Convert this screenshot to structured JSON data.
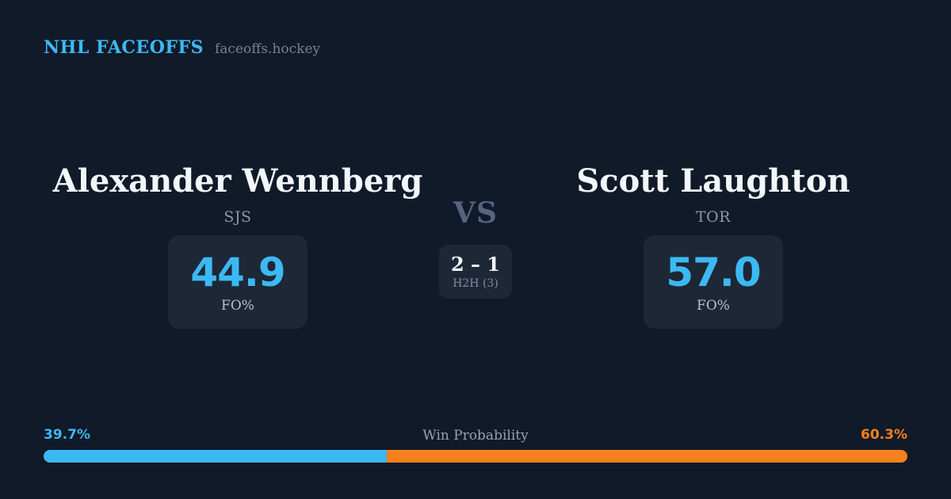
{
  "header": {
    "brand": "NHL FACEOFFS",
    "site": "faceoffs.hockey"
  },
  "players": {
    "left": {
      "name": "Alexander Wennberg",
      "team": "SJS",
      "fo_pct": "44.9",
      "stat_label": "FO%"
    },
    "right": {
      "name": "Scott Laughton",
      "team": "TOR",
      "fo_pct": "57.0",
      "stat_label": "FO%"
    }
  },
  "center": {
    "vs_label": "VS",
    "h2h_score": "2 – 1",
    "h2h_label": "H2H (3)"
  },
  "win_probability": {
    "title": "Win Probability",
    "left_label": "39.7%",
    "right_label": "60.3%",
    "left_value": 39.7,
    "right_value": 60.3
  },
  "colors": {
    "background": "#111A29",
    "card": "#1D2736",
    "accent_blue": "#3CB9F2",
    "accent_orange": "#F5801D",
    "text_primary": "#F3F6FA",
    "text_muted": "#8B98AC"
  }
}
